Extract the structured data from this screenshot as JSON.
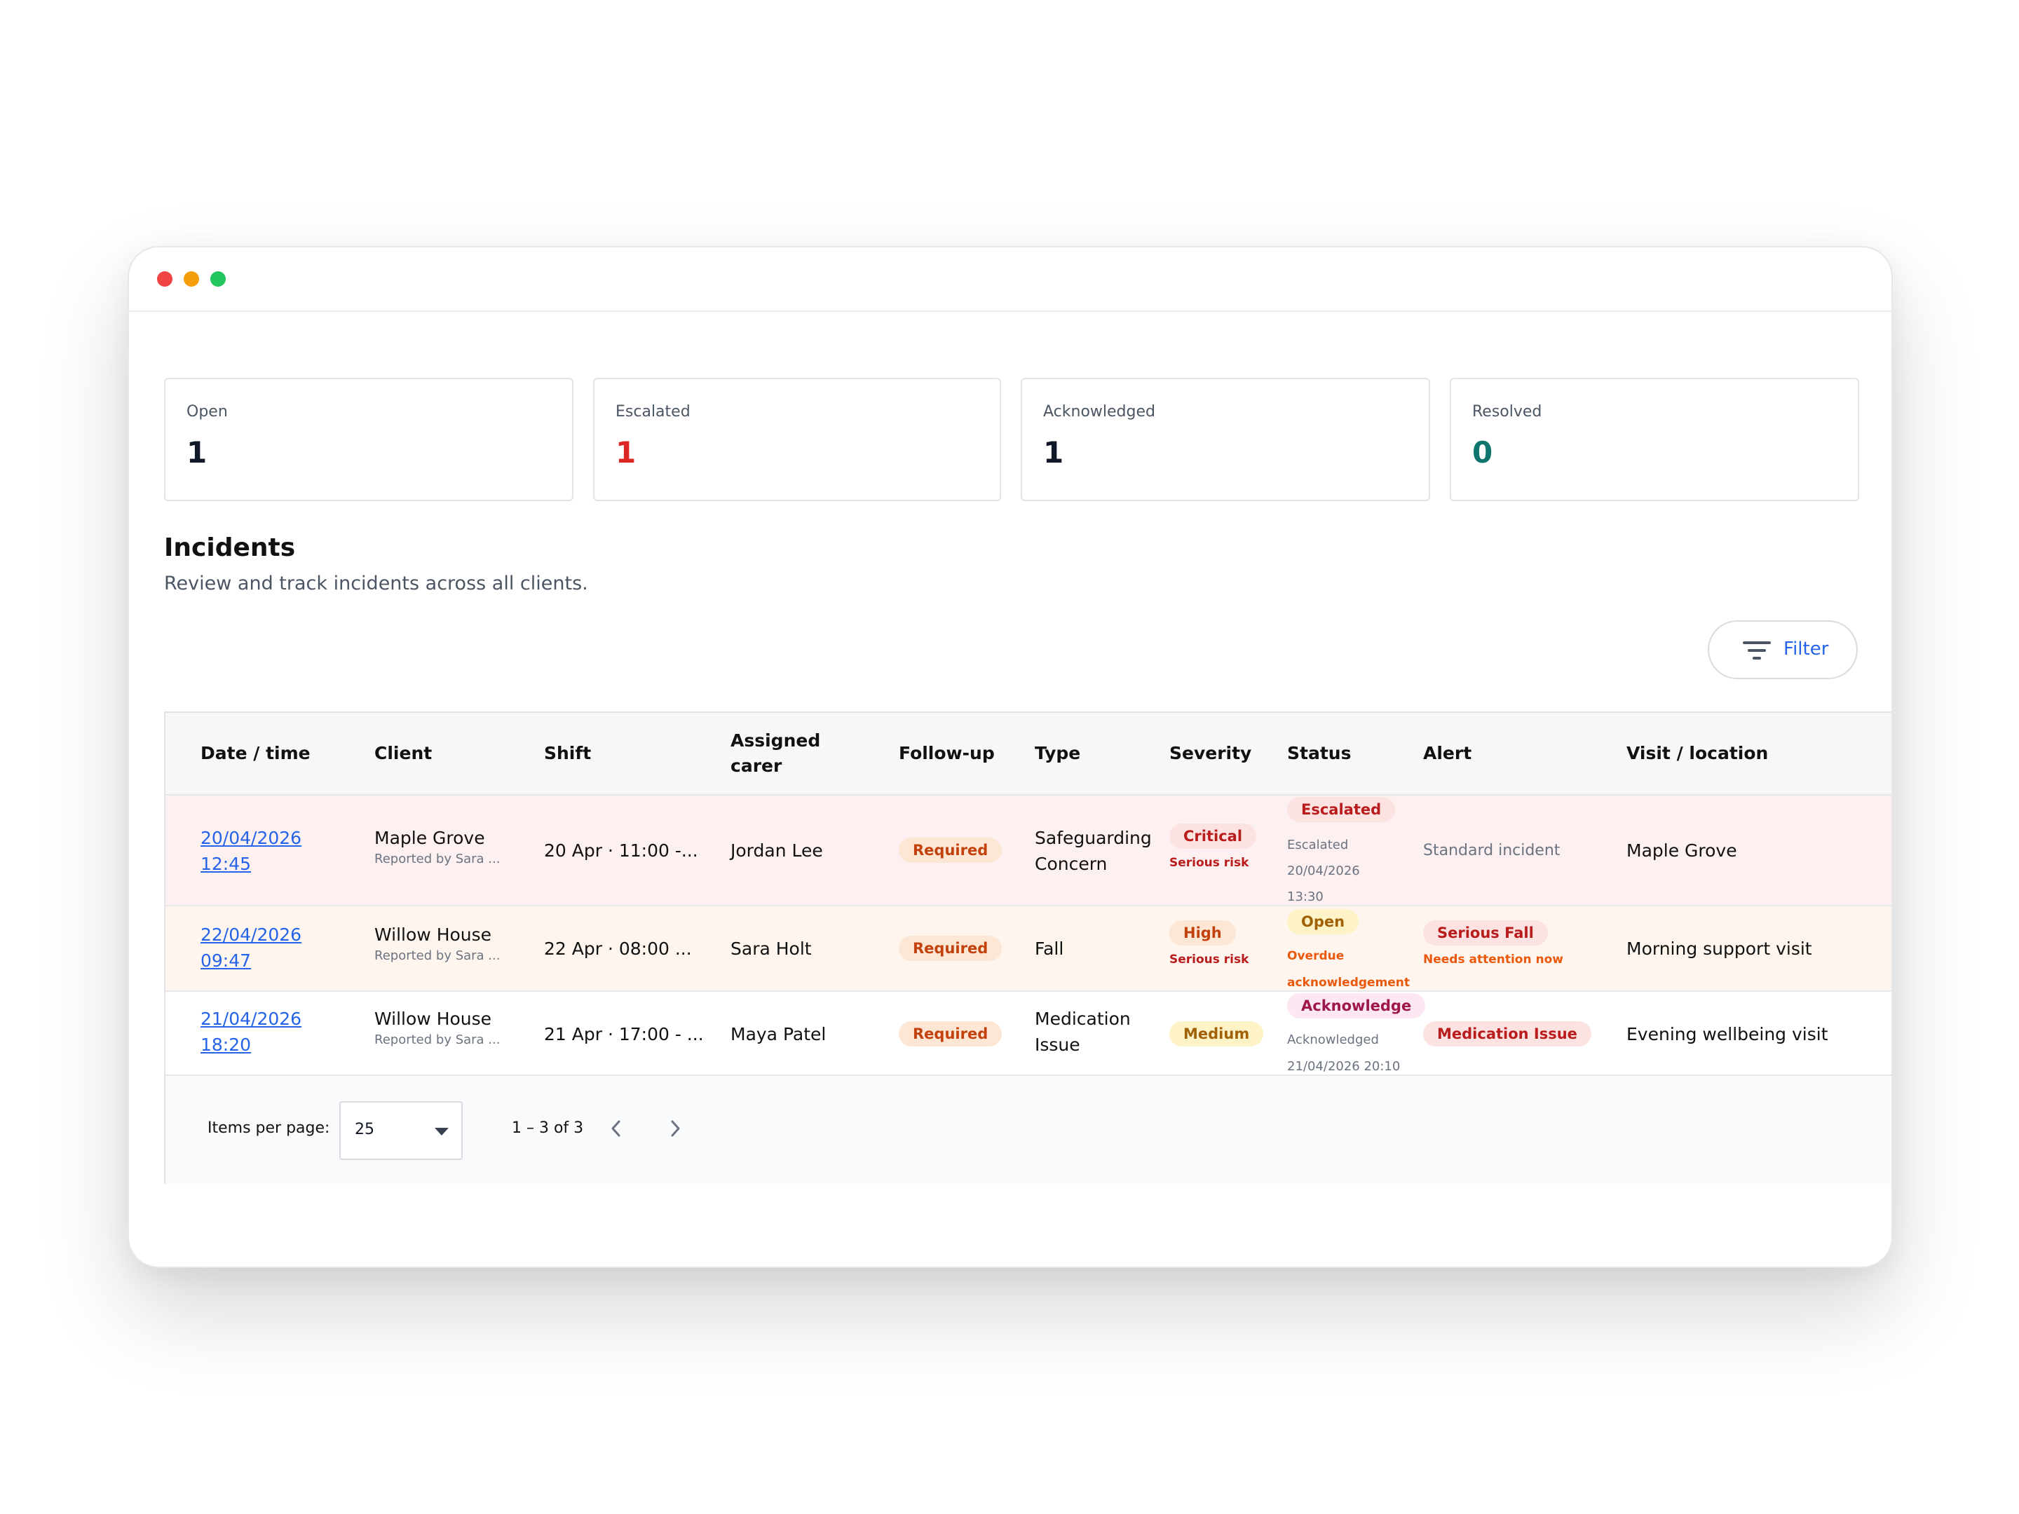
{
  "stats": [
    {
      "label": "Open",
      "value": "1",
      "color": "#111827"
    },
    {
      "label": "Escalated",
      "value": "1",
      "color": "#dc2626"
    },
    {
      "label": "Acknowledged",
      "value": "1",
      "color": "#111827"
    },
    {
      "label": "Resolved",
      "value": "0",
      "color": "#0f766e"
    }
  ],
  "section": {
    "title": "Incidents",
    "subtitle": "Review and track incidents across all clients."
  },
  "filter": {
    "label": "Filter",
    "icon": "filter-lines-icon"
  },
  "table": {
    "headers": {
      "datetime": "Date / time",
      "client": "Client",
      "shift": "Shift",
      "carer_line1": "Assigned",
      "carer_line2": "carer",
      "followup": "Follow-up",
      "type": "Type",
      "severity": "Severity",
      "status": "Status",
      "alert": "Alert",
      "visit": "Visit / location"
    },
    "rows": [
      {
        "date": "20/04/2026",
        "time": "12:45",
        "client": "Maple Grove",
        "reporter": "Reported by Sara ...",
        "shift": "20 Apr · 11:00 -...",
        "carer": "Jordan Lee",
        "followup": "Required",
        "type_line1": "Safeguarding",
        "type_line2": "Concern",
        "severity": "Critical",
        "severity_note": "Serious risk",
        "status": "Escalated",
        "status_note1": "Escalated",
        "status_note2": "20/04/2026",
        "status_note3": "13:30",
        "alert": "Standard incident",
        "visit": "Maple Grove"
      },
      {
        "date": "22/04/2026",
        "time": "09:47",
        "client": "Willow House",
        "reporter": "Reported by Sara ...",
        "shift": "22 Apr · 08:00 ...",
        "carer": "Sara Holt",
        "followup": "Required",
        "type": "Fall",
        "severity": "High",
        "severity_note": "Serious risk",
        "status": "Open",
        "status_note1": "Overdue",
        "status_note2": "acknowledgement",
        "alert": "Serious Fall",
        "alert_note": "Needs attention now",
        "visit": "Morning support visit"
      },
      {
        "date": "21/04/2026",
        "time": "18:20",
        "client": "Willow House",
        "reporter": "Reported by Sara ...",
        "shift": "21 Apr · 17:00 - ...",
        "carer": "Maya Patel",
        "followup": "Required",
        "type_line1": "Medication",
        "type_line2": "Issue",
        "severity": "Medium",
        "status": "Acknowledge",
        "status_note1": "Acknowledged",
        "status_note2": "21/04/2026 20:10",
        "alert": "Medication Issue",
        "visit": "Evening wellbeing visit"
      }
    ]
  },
  "pagination": {
    "items_per_page_label": "Items per page:",
    "items_per_page_value": "25",
    "range": "1 – 3 of 3",
    "prev_icon": "chevron-left-icon",
    "next_icon": "chevron-right-icon"
  }
}
